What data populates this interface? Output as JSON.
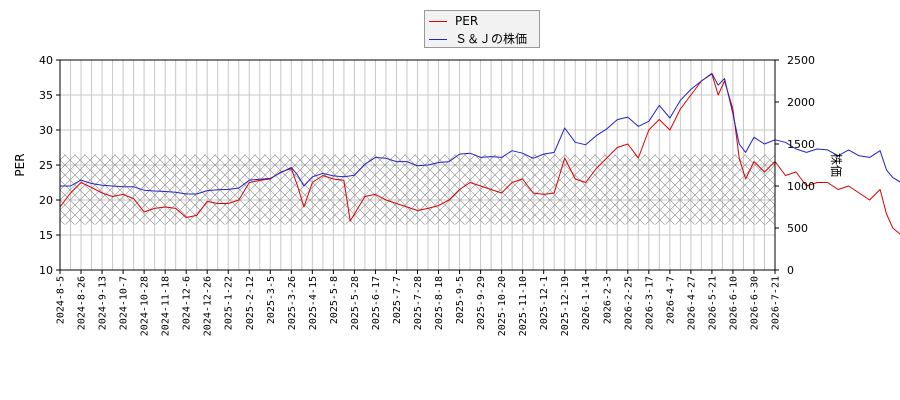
{
  "chart_data": {
    "type": "line",
    "legend": {
      "placement": "top-center"
    },
    "grid": true,
    "y_left": {
      "label": "PER",
      "lim": [
        10,
        40
      ],
      "ticks": [
        10,
        15,
        20,
        25,
        30,
        35,
        40
      ]
    },
    "y_right": {
      "label": "株価",
      "lim": [
        0,
        2500
      ],
      "ticks": [
        0,
        500,
        1000,
        1500,
        2000,
        2500
      ]
    },
    "x_tick_labels": [
      "2024-8-5",
      "2024-8-26",
      "2024-9-13",
      "2024-10-7",
      "2024-10-28",
      "2024-11-18",
      "2024-12-6",
      "2024-12-26",
      "2025-1-22",
      "2025-2-12",
      "2025-3-5",
      "2025-3-26",
      "2025-4-15",
      "2025-5-8",
      "2025-5-28",
      "2025-6-17",
      "2025-7-7",
      "2025-7-28",
      "2025-8-18",
      "2025-9-5",
      "2025-9-29",
      "2025-10-20",
      "2025-11-10",
      "2025-12-1",
      "2025-12-19",
      "2026-1-14",
      "2026-2-3",
      "2026-2-25",
      "2026-3-17",
      "2026-4-7",
      "2026-4-27",
      "2026-5-21",
      "2026-6-10",
      "2026-6-30",
      "2026-7-21"
    ],
    "pe_band": {
      "axis": "left",
      "range": [
        16.5,
        26.5
      ]
    },
    "series": [
      {
        "name": "PER",
        "color": "#dd0000",
        "axis": "left",
        "points": [
          [
            0,
            19
          ],
          [
            0.5,
            21
          ],
          [
            1,
            22.5
          ],
          [
            1.5,
            21.8
          ],
          [
            2,
            21
          ],
          [
            2.5,
            20.5
          ],
          [
            3,
            20.8
          ],
          [
            3.5,
            20.2
          ],
          [
            4,
            18.3
          ],
          [
            4.5,
            18.8
          ],
          [
            5,
            19
          ],
          [
            5.5,
            18.8
          ],
          [
            6,
            17.5
          ],
          [
            6.5,
            17.8
          ],
          [
            7,
            19.8
          ],
          [
            7.5,
            19.5
          ],
          [
            8,
            19.5
          ],
          [
            8.5,
            20
          ],
          [
            9,
            22.5
          ],
          [
            9.5,
            22.8
          ],
          [
            10,
            23
          ],
          [
            10.5,
            24
          ],
          [
            11,
            24.5
          ],
          [
            11.3,
            22
          ],
          [
            11.6,
            19
          ],
          [
            12,
            22.5
          ],
          [
            12.5,
            23.5
          ],
          [
            13,
            23
          ],
          [
            13.5,
            22.8
          ],
          [
            13.8,
            17
          ],
          [
            14,
            18
          ],
          [
            14.5,
            20.5
          ],
          [
            15,
            20.8
          ],
          [
            15.5,
            20
          ],
          [
            16,
            19.5
          ],
          [
            16.5,
            19
          ],
          [
            17,
            18.5
          ],
          [
            17.5,
            18.8
          ],
          [
            18,
            19.2
          ],
          [
            18.5,
            20
          ],
          [
            19,
            21.5
          ],
          [
            19.5,
            22.5
          ],
          [
            20,
            22
          ],
          [
            20.5,
            21.5
          ],
          [
            21,
            21
          ],
          [
            21.5,
            22.5
          ],
          [
            22,
            23
          ],
          [
            22.5,
            21
          ],
          [
            23,
            20.8
          ],
          [
            23.5,
            21
          ],
          [
            24,
            26
          ],
          [
            24.5,
            23
          ],
          [
            25,
            22.5
          ],
          [
            25.5,
            24.5
          ],
          [
            26,
            26
          ],
          [
            26.5,
            27.5
          ],
          [
            27,
            28
          ],
          [
            27.5,
            26
          ],
          [
            28,
            30
          ],
          [
            28.5,
            31.5
          ],
          [
            29,
            30
          ],
          [
            29.5,
            33
          ],
          [
            30,
            35
          ],
          [
            30.5,
            37
          ],
          [
            31,
            38
          ],
          [
            31.3,
            35
          ],
          [
            31.6,
            37
          ],
          [
            32,
            33
          ],
          [
            32.3,
            26
          ],
          [
            32.6,
            23
          ],
          [
            33,
            25.5
          ],
          [
            33.5,
            24
          ],
          [
            34,
            25.5
          ],
          [
            34.5,
            23.5
          ],
          [
            35,
            24
          ],
          [
            35.5,
            22
          ],
          [
            36,
            22.5
          ],
          [
            36.5,
            22.5
          ],
          [
            37,
            21.5
          ],
          [
            37.5,
            22
          ],
          [
            38,
            21
          ],
          [
            38.5,
            20
          ],
          [
            39,
            21.5
          ],
          [
            39.3,
            18
          ],
          [
            39.6,
            16
          ],
          [
            40,
            15
          ],
          [
            40.3,
            13
          ],
          [
            40.6,
            12
          ],
          [
            41,
            12.5
          ],
          [
            41.5,
            13
          ],
          [
            42,
            13.3
          ],
          [
            42.5,
            13.5
          ],
          [
            43,
            14.5
          ],
          [
            43.5,
            15
          ],
          [
            44,
            15.5
          ],
          [
            44.5,
            15
          ],
          [
            45,
            14.8
          ],
          [
            45.5,
            15
          ],
          [
            46,
            14.5
          ],
          [
            46.3,
            14.2
          ]
        ]
      },
      {
        "name": "Ｓ＆Ｊの株価",
        "color": "#2222cc",
        "axis": "right",
        "points": [
          [
            0,
            1000
          ],
          [
            0.5,
            1000
          ],
          [
            1,
            1070
          ],
          [
            1.5,
            1030
          ],
          [
            2,
            1010
          ],
          [
            2.5,
            1000
          ],
          [
            3,
            990
          ],
          [
            3.5,
            990
          ],
          [
            4,
            950
          ],
          [
            4.5,
            940
          ],
          [
            5,
            935
          ],
          [
            5.5,
            925
          ],
          [
            6,
            905
          ],
          [
            6.5,
            905
          ],
          [
            7,
            945
          ],
          [
            7.5,
            955
          ],
          [
            8,
            960
          ],
          [
            8.5,
            975
          ],
          [
            9,
            1070
          ],
          [
            9.5,
            1080
          ],
          [
            10,
            1090
          ],
          [
            10.5,
            1160
          ],
          [
            11,
            1220
          ],
          [
            11.3,
            1130
          ],
          [
            11.6,
            1000
          ],
          [
            12,
            1110
          ],
          [
            12.5,
            1150
          ],
          [
            13,
            1120
          ],
          [
            13.5,
            1110
          ],
          [
            13.8,
            1120
          ],
          [
            14,
            1130
          ],
          [
            14.5,
            1260
          ],
          [
            15,
            1340
          ],
          [
            15.5,
            1330
          ],
          [
            16,
            1290
          ],
          [
            16.5,
            1290
          ],
          [
            17,
            1240
          ],
          [
            17.5,
            1250
          ],
          [
            18,
            1280
          ],
          [
            18.5,
            1290
          ],
          [
            19,
            1380
          ],
          [
            19.5,
            1390
          ],
          [
            20,
            1340
          ],
          [
            20.5,
            1350
          ],
          [
            21,
            1340
          ],
          [
            21.5,
            1420
          ],
          [
            22,
            1390
          ],
          [
            22.5,
            1330
          ],
          [
            23,
            1380
          ],
          [
            23.5,
            1400
          ],
          [
            24,
            1690
          ],
          [
            24.5,
            1520
          ],
          [
            25,
            1490
          ],
          [
            25.5,
            1600
          ],
          [
            26,
            1680
          ],
          [
            26.5,
            1790
          ],
          [
            27,
            1820
          ],
          [
            27.5,
            1710
          ],
          [
            28,
            1770
          ],
          [
            28.5,
            1960
          ],
          [
            29,
            1810
          ],
          [
            29.5,
            2020
          ],
          [
            30,
            2150
          ],
          [
            30.5,
            2250
          ],
          [
            31,
            2340
          ],
          [
            31.3,
            2200
          ],
          [
            31.6,
            2280
          ],
          [
            32,
            1860
          ],
          [
            32.3,
            1500
          ],
          [
            32.6,
            1400
          ],
          [
            33,
            1580
          ],
          [
            33.5,
            1500
          ],
          [
            34,
            1550
          ],
          [
            34.5,
            1520
          ],
          [
            35,
            1440
          ],
          [
            35.5,
            1400
          ],
          [
            36,
            1440
          ],
          [
            36.5,
            1430
          ],
          [
            37,
            1360
          ],
          [
            37.5,
            1430
          ],
          [
            38,
            1360
          ],
          [
            38.5,
            1340
          ],
          [
            39,
            1420
          ],
          [
            39.3,
            1190
          ],
          [
            39.6,
            1100
          ],
          [
            40,
            1040
          ],
          [
            40.3,
            990
          ],
          [
            40.6,
            890
          ],
          [
            41,
            890
          ],
          [
            41.5,
            920
          ],
          [
            42,
            940
          ],
          [
            42.5,
            980
          ],
          [
            43,
            1010
          ],
          [
            43.5,
            1050
          ],
          [
            44,
            1100
          ],
          [
            44.5,
            1150
          ],
          [
            45,
            1120
          ],
          [
            45.5,
            1100
          ],
          [
            46,
            1080
          ],
          [
            46.3,
            1040
          ]
        ]
      }
    ]
  }
}
